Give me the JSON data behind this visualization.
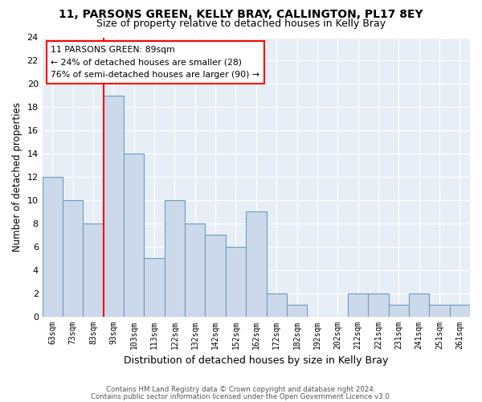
{
  "title1": "11, PARSONS GREEN, KELLY BRAY, CALLINGTON, PL17 8EY",
  "title2": "Size of property relative to detached houses in Kelly Bray",
  "xlabel": "Distribution of detached houses by size in Kelly Bray",
  "ylabel": "Number of detached properties",
  "bin_labels": [
    "63sqm",
    "73sqm",
    "83sqm",
    "93sqm",
    "103sqm",
    "113sqm",
    "122sqm",
    "132sqm",
    "142sqm",
    "152sqm",
    "162sqm",
    "172sqm",
    "182sqm",
    "192sqm",
    "202sqm",
    "212sqm",
    "221sqm",
    "231sqm",
    "241sqm",
    "251sqm",
    "261sqm"
  ],
  "bar_values": [
    12,
    10,
    8,
    19,
    14,
    5,
    10,
    8,
    7,
    6,
    9,
    2,
    1,
    0,
    0,
    2,
    2,
    1,
    2,
    1,
    1
  ],
  "bar_color": "#ccd9ea",
  "bar_edge_color": "#6a9ec5",
  "annotation_title": "11 PARSONS GREEN: 89sqm",
  "annotation_line1": "← 24% of detached houses are smaller (28)",
  "annotation_line2": "76% of semi-detached houses are larger (90) →",
  "ylim": [
    0,
    24
  ],
  "yticks": [
    0,
    2,
    4,
    6,
    8,
    10,
    12,
    14,
    16,
    18,
    20,
    22,
    24
  ],
  "footer1": "Contains HM Land Registry data © Crown copyright and database right 2024.",
  "footer2": "Contains public sector information licensed under the Open Government Licence v3.0.",
  "bg_color": "#ffffff",
  "plot_bg_color": "#e8eef5"
}
